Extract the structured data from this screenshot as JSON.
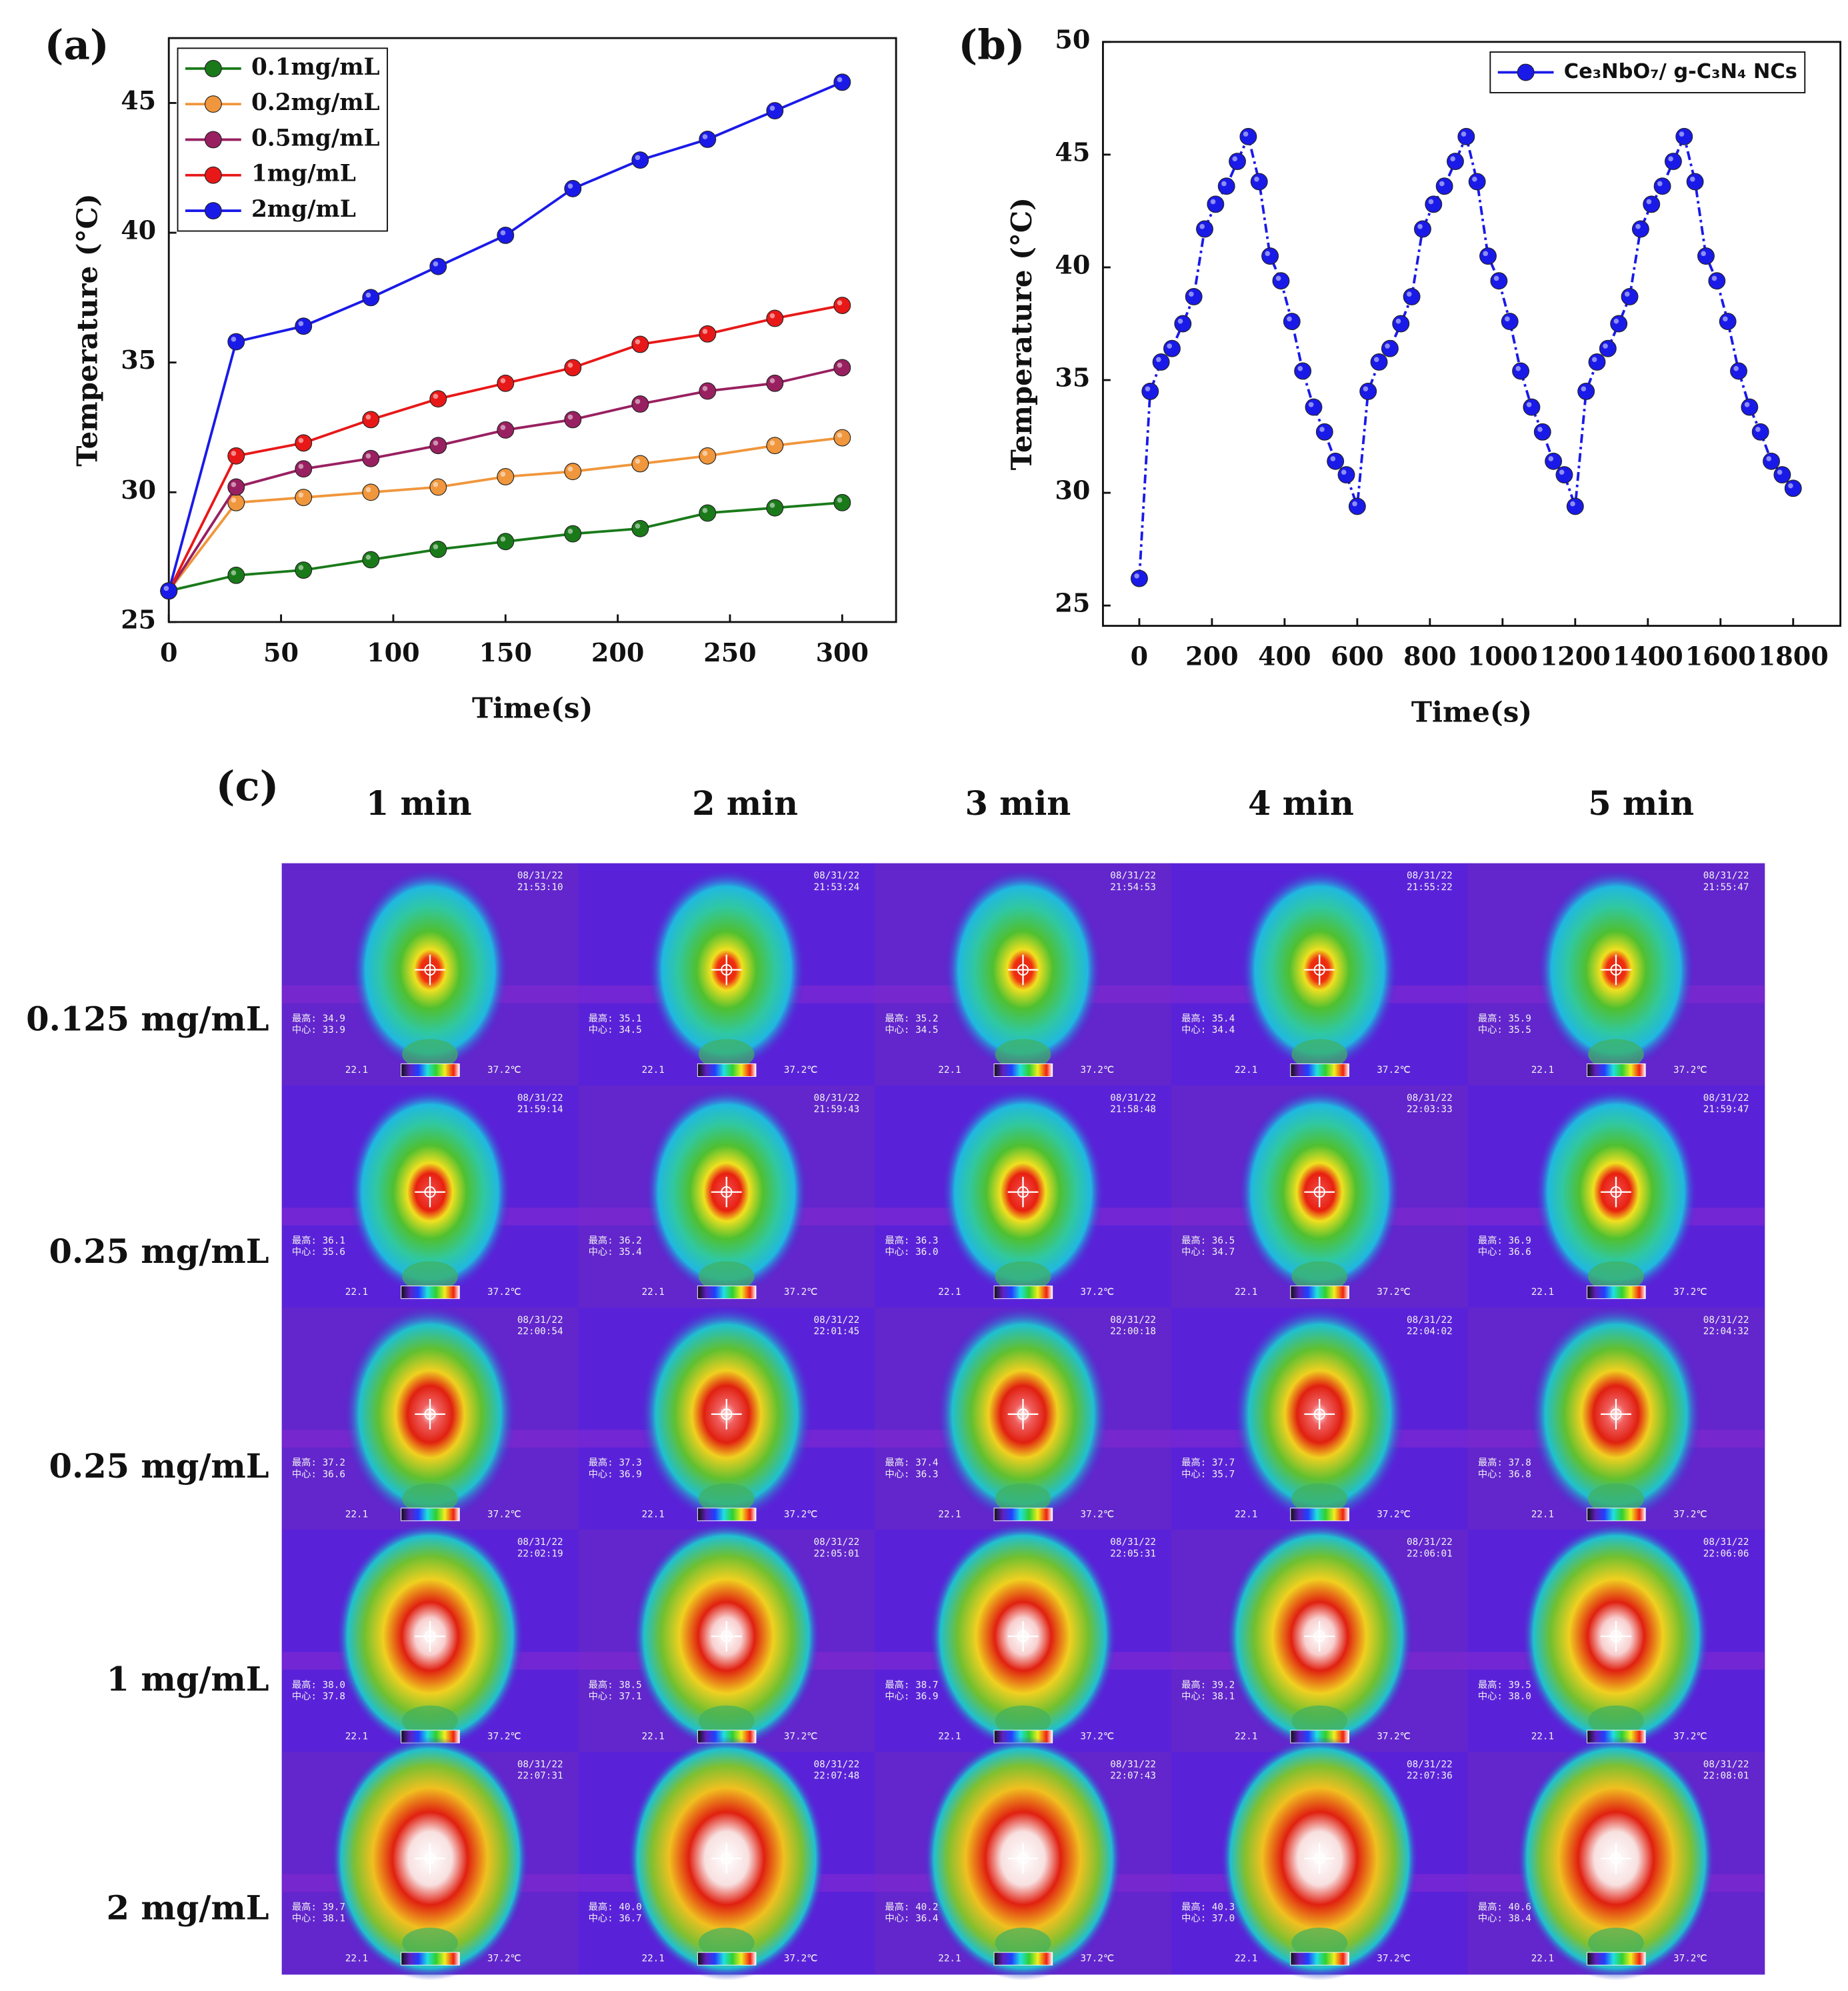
{
  "chart_data": [
    {
      "type": "line",
      "panel_label": "(a)",
      "x_label": "Time(s)",
      "y_label": "Temperature (°C)",
      "x": [
        0,
        30,
        60,
        90,
        120,
        150,
        180,
        210,
        240,
        270,
        300
      ],
      "series": [
        {
          "name": "0.1mg/mL",
          "color": "#1a7a1a",
          "values": [
            26.2,
            26.8,
            27.0,
            27.4,
            27.8,
            28.1,
            28.4,
            28.6,
            29.2,
            29.4,
            29.6
          ]
        },
        {
          "name": "0.2mg/mL",
          "color": "#f0963c",
          "values": [
            26.2,
            29.6,
            29.8,
            30.0,
            30.2,
            30.6,
            30.8,
            31.1,
            31.4,
            31.8,
            32.1
          ]
        },
        {
          "name": "0.5mg/mL",
          "color": "#992060",
          "values": [
            26.2,
            30.2,
            30.9,
            31.3,
            31.8,
            32.4,
            32.8,
            33.4,
            33.9,
            34.2,
            34.8
          ]
        },
        {
          "name": "1mg/mL",
          "color": "#e81818",
          "values": [
            26.2,
            31.4,
            31.9,
            32.8,
            33.6,
            34.2,
            34.8,
            35.7,
            36.1,
            36.7,
            37.2
          ]
        },
        {
          "name": "2mg/mL",
          "color": "#1a1ae8",
          "values": [
            26.2,
            35.8,
            36.4,
            37.5,
            38.7,
            39.9,
            41.7,
            42.8,
            43.6,
            44.7,
            45.8
          ]
        }
      ],
      "xlim": [
        0,
        324
      ],
      "xticks": [
        0,
        50,
        100,
        150,
        200,
        250,
        300
      ],
      "ylim": [
        25,
        47.5
      ],
      "yticks": [
        25,
        30,
        35,
        40,
        45
      ],
      "grid": false,
      "legend": "upper left",
      "linestyle": "solid"
    },
    {
      "type": "line",
      "panel_label": "(b)",
      "x_label": "Time(s)",
      "y_label": "Temperature (°C)",
      "x": [
        0,
        30,
        60,
        90,
        120,
        150,
        180,
        210,
        240,
        270,
        300,
        330,
        360,
        390,
        420,
        450,
        480,
        510,
        540,
        570,
        600,
        630,
        660,
        690,
        720,
        750,
        780,
        810,
        840,
        870,
        900,
        930,
        960,
        990,
        1020,
        1050,
        1080,
        1110,
        1140,
        1170,
        1200,
        1230,
        1260,
        1290,
        1320,
        1350,
        1380,
        1410,
        1440,
        1470,
        1500,
        1530,
        1560,
        1590,
        1620,
        1650,
        1680,
        1710,
        1740,
        1770,
        1800
      ],
      "series": [
        {
          "name": "Ce₃NbO₇/ g-C₃N₄ NCs",
          "color": "#1a1ae8",
          "values": [
            26.2,
            34.5,
            35.8,
            36.4,
            37.5,
            38.7,
            41.7,
            42.8,
            43.6,
            44.7,
            45.8,
            43.8,
            40.5,
            39.4,
            37.6,
            35.4,
            33.8,
            32.7,
            31.4,
            30.8,
            29.4,
            34.5,
            35.8,
            36.4,
            37.5,
            38.7,
            41.7,
            42.8,
            43.6,
            44.7,
            45.8,
            43.8,
            40.5,
            39.4,
            37.6,
            35.4,
            33.8,
            32.7,
            31.4,
            30.8,
            29.4,
            34.5,
            35.8,
            36.4,
            37.5,
            38.7,
            41.7,
            42.8,
            43.6,
            44.7,
            45.8,
            43.8,
            40.5,
            39.4,
            37.6,
            35.4,
            33.8,
            32.7,
            31.4,
            30.8,
            30.2
          ]
        }
      ],
      "xlim": [
        -100,
        1930
      ],
      "xticks": [
        0,
        200,
        400,
        600,
        800,
        1000,
        1200,
        1400,
        1600,
        1800
      ],
      "ylim": [
        24.1,
        50
      ],
      "yticks": [
        25,
        30,
        35,
        40,
        45,
        50
      ],
      "grid": false,
      "legend": "upper right",
      "linestyle": "dashdot"
    }
  ],
  "thermal": {
    "panel_label": "(c)",
    "columns": [
      "1 min",
      "2 min",
      "3 min",
      "4 min",
      "5 min"
    ],
    "rows": [
      "0.125 mg/mL",
      "0.25 mg/mL",
      "0.25 mg/mL",
      "1 mg/mL",
      "2 mg/mL"
    ],
    "date": "08/31/22",
    "scale_min": "22.1",
    "scale_max": "37.2℃",
    "cells": [
      [
        {
          "time": "21:53:10",
          "max": "最高: 34.9",
          "center": "中心: 33.9"
        },
        {
          "time": "21:53:24",
          "max": "最高: 35.1",
          "center": "中心: 34.5"
        },
        {
          "time": "21:54:53",
          "max": "最高: 35.2",
          "center": "中心: 34.5"
        },
        {
          "time": "21:55:22",
          "max": "最高: 35.4",
          "center": "中心: 34.4"
        },
        {
          "time": "21:55:47",
          "max": "最高: 35.9",
          "center": "中心: 35.5"
        }
      ],
      [
        {
          "time": "21:59:14",
          "max": "最高: 36.1",
          "center": "中心: 35.6"
        },
        {
          "time": "21:59:43",
          "max": "最高: 36.2",
          "center": "中心: 35.4"
        },
        {
          "time": "21:58:48",
          "max": "最高: 36.3",
          "center": "中心: 36.0"
        },
        {
          "time": "22:03:33",
          "max": "最高: 36.5",
          "center": "中心: 34.7"
        },
        {
          "time": "21:59:47",
          "max": "最高: 36.9",
          "center": "中心: 36.6"
        }
      ],
      [
        {
          "time": "22:00:54",
          "max": "最高: 37.2",
          "center": "中心: 36.6"
        },
        {
          "time": "22:01:45",
          "max": "最高: 37.3",
          "center": "中心: 36.9"
        },
        {
          "time": "22:00:18",
          "max": "最高: 37.4",
          "center": "中心: 36.3"
        },
        {
          "time": "22:04:02",
          "max": "最高: 37.7",
          "center": "中心: 35.7"
        },
        {
          "time": "22:04:32",
          "max": "最高: 37.8",
          "center": "中心: 36.8"
        }
      ],
      [
        {
          "time": "22:02:19",
          "max": "最高: 38.0",
          "center": "中心: 37.8"
        },
        {
          "time": "22:05:01",
          "max": "最高: 38.5",
          "center": "中心: 37.1"
        },
        {
          "time": "22:05:31",
          "max": "最高: 38.7",
          "center": "中心: 36.9"
        },
        {
          "time": "22:06:01",
          "max": "最高: 39.2",
          "center": "中心: 38.1"
        },
        {
          "time": "22:06:06",
          "max": "最高: 39.5",
          "center": "中心: 38.0"
        }
      ],
      [
        {
          "time": "22:07:31",
          "max": "最高: 39.7",
          "center": "中心: 38.1"
        },
        {
          "time": "22:07:48",
          "max": "最高: 40.0",
          "center": "中心: 36.7"
        },
        {
          "time": "22:07:43",
          "max": "最高: 40.2",
          "center": "中心: 36.4"
        },
        {
          "time": "22:07:36",
          "max": "最高: 40.3",
          "center": "中心: 37.0"
        },
        {
          "time": "22:08:01",
          "max": "最高: 40.6",
          "center": "中心: 38.4"
        }
      ]
    ]
  }
}
